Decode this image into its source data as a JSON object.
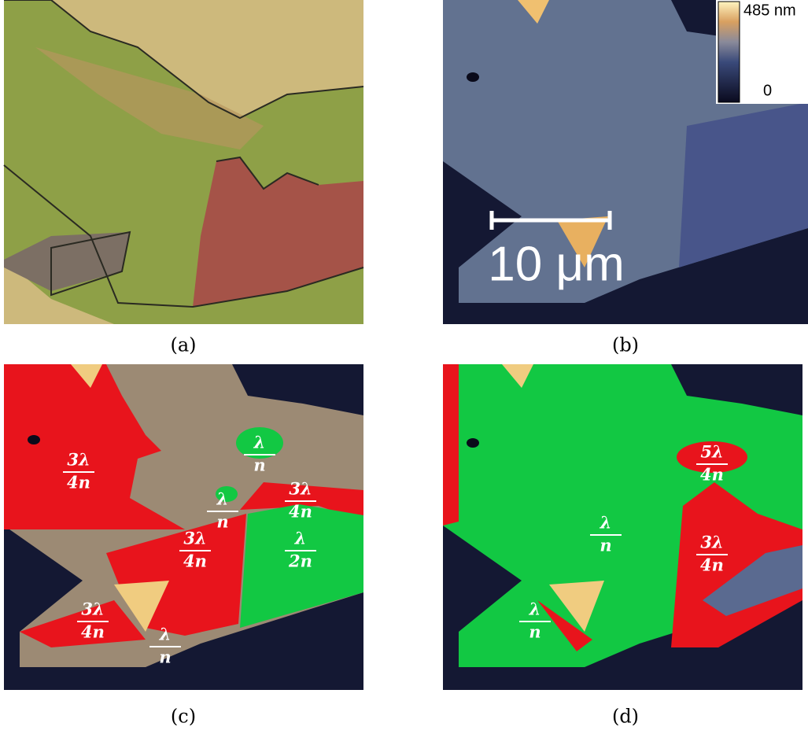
{
  "panels": [
    {
      "label": "(a)"
    },
    {
      "label": "(b)",
      "colorbar": {
        "max": "485 nm",
        "min": "0"
      },
      "scale_bar": "10 μm"
    },
    {
      "label": "(c)",
      "regions": [
        {
          "numerator": "3λ",
          "denominator": "4n"
        },
        {
          "numerator": "λ",
          "denominator": "n"
        },
        {
          "numerator": "λ",
          "denominator": "n"
        },
        {
          "numerator": "3λ",
          "denominator": "4n"
        },
        {
          "numerator": "3λ",
          "denominator": "4n"
        },
        {
          "numerator": "λ",
          "denominator": "2n"
        },
        {
          "numerator": "3λ",
          "denominator": "4n"
        },
        {
          "numerator": "λ",
          "denominator": "n"
        }
      ]
    },
    {
      "label": "(d)",
      "regions": [
        {
          "numerator": "5λ",
          "denominator": "4n"
        },
        {
          "numerator": "λ",
          "denominator": "n"
        },
        {
          "numerator": "3λ",
          "denominator": "4n"
        },
        {
          "numerator": "λ",
          "denominator": "n"
        }
      ]
    }
  ]
}
